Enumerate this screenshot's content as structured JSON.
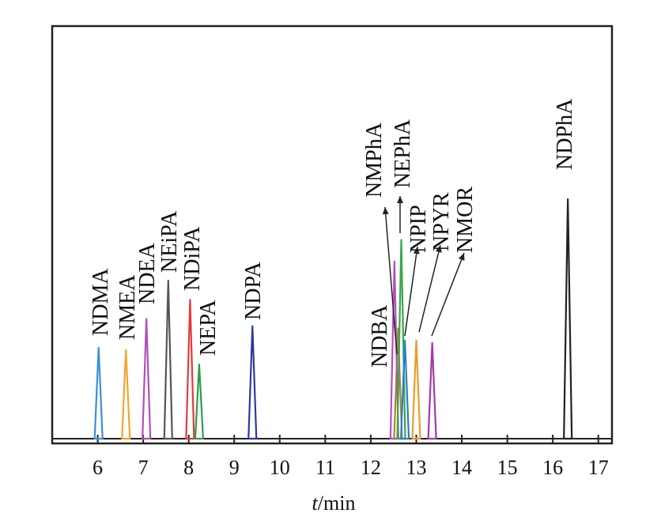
{
  "chart_data": {
    "type": "line",
    "title": "",
    "xlabel_var": "t",
    "xlabel_unit": "/min",
    "ylabel": "",
    "xlim": [
      5.0,
      17.3
    ],
    "xticks": [
      6,
      7,
      8,
      9,
      10,
      11,
      12,
      13,
      14,
      15,
      16,
      17
    ],
    "grid": false,
    "legend": "none",
    "series": [
      {
        "name": "NDMA",
        "peak_time": 6.02,
        "relative_height": 0.38,
        "color": "#3b8fd8"
      },
      {
        "name": "NMEA",
        "peak_time": 6.62,
        "relative_height": 0.37,
        "color": "#f2a530"
      },
      {
        "name": "NDEA",
        "peak_time": 7.07,
        "relative_height": 0.5,
        "color": "#b04fb8"
      },
      {
        "name": "NEiPA",
        "peak_time": 7.55,
        "relative_height": 0.66,
        "color": "#555555"
      },
      {
        "name": "NDiPA",
        "peak_time": 8.03,
        "relative_height": 0.58,
        "color": "#e23b3b"
      },
      {
        "name": "NEPA",
        "peak_time": 8.23,
        "relative_height": 0.31,
        "color": "#2e9e46"
      },
      {
        "name": "NDPA",
        "peak_time": 9.4,
        "relative_height": 0.47,
        "color": "#2b3a9e"
      },
      {
        "name": "NDBA",
        "peak_time": 12.6,
        "relative_height": 0.46,
        "color": "#b5842a"
      },
      {
        "name": "NMPhA",
        "peak_time": 12.52,
        "relative_height": 0.74,
        "color": "#b44fc0"
      },
      {
        "name": "NEPhA",
        "peak_time": 12.67,
        "relative_height": 0.83,
        "color": "#38a84a"
      },
      {
        "name": "NPIP",
        "peak_time": 12.75,
        "relative_height": 0.41,
        "color": "#2a7fc8"
      },
      {
        "name": "NPYR",
        "peak_time": 13.0,
        "relative_height": 0.41,
        "color": "#f09a2a"
      },
      {
        "name": "NMOR",
        "peak_time": 13.35,
        "relative_height": 0.4,
        "color": "#a03aa8"
      },
      {
        "name": "NDPhA",
        "peak_time": 16.33,
        "relative_height": 1.0,
        "color": "#222222"
      }
    ]
  }
}
